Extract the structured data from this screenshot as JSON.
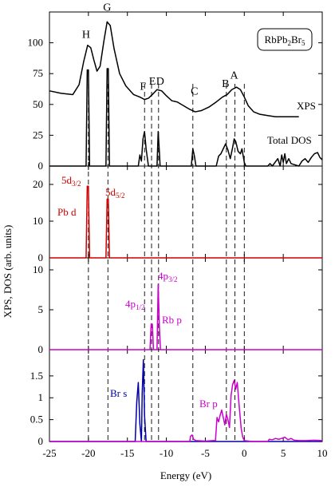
{
  "figure": {
    "xlabel": "Energy (eV)",
    "ylabel": "XPS, DOS (arb. units)",
    "formula": {
      "base": "RbPb",
      "sub1": "2",
      "mid": "Br",
      "sub2": "5"
    },
    "x_ticks": [
      -25,
      -20,
      -15,
      -10,
      -5,
      0,
      5,
      10
    ],
    "xlim": [
      -25,
      10
    ],
    "dashed_lines_x": [
      -20.0,
      -17.5,
      -12.8,
      -11.9,
      -11.0,
      -6.6,
      -2.3,
      -1.2,
      0.0
    ],
    "colors": {
      "axis": "#000000",
      "pb": "#cc0000",
      "rb": "#cc00cc",
      "br_s": "#0000aa",
      "br_p": "#cc00cc"
    }
  },
  "chart_data": [
    {
      "type": "line",
      "panel": "xps_total_dos",
      "ylim": [
        0,
        125
      ],
      "y_ticks": [
        0,
        25,
        50,
        75,
        100
      ],
      "series": [
        {
          "name": "XPS",
          "points": [
            [
              -25,
              61
            ],
            [
              -23.5,
              59
            ],
            [
              -22,
              58
            ],
            [
              -21.2,
              66
            ],
            [
              -20.6,
              85
            ],
            [
              -20.1,
              98
            ],
            [
              -19.7,
              96
            ],
            [
              -19.3,
              86
            ],
            [
              -18.9,
              77
            ],
            [
              -18.5,
              81
            ],
            [
              -18.0,
              102
            ],
            [
              -17.6,
              117
            ],
            [
              -17.2,
              114
            ],
            [
              -16.7,
              95
            ],
            [
              -16.0,
              75
            ],
            [
              -15.2,
              65
            ],
            [
              -14.2,
              58
            ],
            [
              -13.4,
              56
            ],
            [
              -12.8,
              54
            ],
            [
              -12.3,
              55
            ],
            [
              -11.8,
              58
            ],
            [
              -11.2,
              62
            ],
            [
              -10.6,
              61
            ],
            [
              -10.0,
              57
            ],
            [
              -9.3,
              53
            ],
            [
              -8.6,
              52
            ],
            [
              -7.8,
              49
            ],
            [
              -7.0,
              46
            ],
            [
              -6.3,
              44
            ],
            [
              -5.5,
              45
            ],
            [
              -4.5,
              48
            ],
            [
              -3.6,
              52
            ],
            [
              -2.8,
              56
            ],
            [
              -2.2,
              58
            ],
            [
              -1.6,
              62
            ],
            [
              -1.0,
              64
            ],
            [
              -0.5,
              62
            ],
            [
              0.0,
              56
            ],
            [
              0.5,
              49
            ],
            [
              1.2,
              44
            ],
            [
              2.0,
              42
            ],
            [
              3.0,
              41
            ],
            [
              4.0,
              40
            ],
            [
              5.0,
              40
            ],
            [
              7.0,
              40
            ]
          ]
        },
        {
          "name": "Total DOS",
          "points": [
            [
              -25,
              0
            ],
            [
              -20.3,
              0
            ],
            [
              -20.15,
              78
            ],
            [
              -20.0,
              78
            ],
            [
              -19.85,
              0
            ],
            [
              -17.75,
              0
            ],
            [
              -17.6,
              79
            ],
            [
              -17.45,
              79
            ],
            [
              -17.3,
              0
            ],
            [
              -13.6,
              0
            ],
            [
              -13.4,
              9
            ],
            [
              -13.2,
              4
            ],
            [
              -13.0,
              22
            ],
            [
              -12.8,
              28
            ],
            [
              -12.6,
              14
            ],
            [
              -12.3,
              0
            ],
            [
              -11.2,
              0
            ],
            [
              -11.05,
              28
            ],
            [
              -10.9,
              12
            ],
            [
              -10.8,
              0
            ],
            [
              -6.8,
              0
            ],
            [
              -6.6,
              14
            ],
            [
              -6.4,
              8
            ],
            [
              -6.2,
              0
            ],
            [
              -3.6,
              0
            ],
            [
              -3.3,
              8
            ],
            [
              -3.0,
              10
            ],
            [
              -2.7,
              14
            ],
            [
              -2.4,
              18
            ],
            [
              -2.1,
              13
            ],
            [
              -1.8,
              6
            ],
            [
              -1.5,
              15
            ],
            [
              -1.3,
              22
            ],
            [
              -1.1,
              20
            ],
            [
              -0.8,
              12
            ],
            [
              -0.5,
              10
            ],
            [
              -0.3,
              14
            ],
            [
              0.0,
              3
            ],
            [
              0.2,
              0
            ],
            [
              3.0,
              0
            ],
            [
              3.3,
              2
            ],
            [
              3.6,
              0
            ],
            [
              4.3,
              6
            ],
            [
              4.6,
              0
            ],
            [
              4.8,
              9
            ],
            [
              5.0,
              3
            ],
            [
              5.2,
              10
            ],
            [
              5.4,
              2
            ],
            [
              5.7,
              6
            ],
            [
              6.0,
              2
            ],
            [
              6.5,
              1
            ],
            [
              7.0,
              0
            ],
            [
              7.4,
              4
            ],
            [
              7.8,
              6
            ],
            [
              8.2,
              3
            ],
            [
              8.6,
              7
            ],
            [
              9.0,
              10
            ],
            [
              9.4,
              11
            ],
            [
              9.7,
              7
            ],
            [
              10.0,
              5
            ]
          ]
        }
      ],
      "peak_labels": [
        {
          "text": "H",
          "x": -20.3,
          "y": 104
        },
        {
          "text": "G",
          "x": -17.6,
          "y": 126
        },
        {
          "text": "F",
          "x": -13.0,
          "y": 62
        },
        {
          "text": "E",
          "x": -11.8,
          "y": 66
        },
        {
          "text": "D",
          "x": -10.8,
          "y": 66
        },
        {
          "text": "C",
          "x": -6.4,
          "y": 58
        },
        {
          "text": "B",
          "x": -2.4,
          "y": 64
        },
        {
          "text": "A",
          "x": -1.3,
          "y": 71
        }
      ],
      "labels": {
        "xps": "XPS",
        "total_dos": "Total DOS"
      }
    },
    {
      "type": "line",
      "panel": "pb_d",
      "ylim": [
        0,
        25
      ],
      "y_ticks": [
        0,
        10,
        20
      ],
      "series": [
        {
          "name": "Pb d",
          "points": [
            [
              -25,
              0
            ],
            [
              -20.3,
              0
            ],
            [
              -20.15,
              19.5
            ],
            [
              -20.0,
              19.5
            ],
            [
              -19.85,
              0
            ],
            [
              -17.75,
              0
            ],
            [
              -17.6,
              16
            ],
            [
              -17.45,
              16
            ],
            [
              -17.3,
              0
            ],
            [
              10,
              0
            ]
          ]
        }
      ],
      "labels": {
        "series": "Pb d",
        "level1_base": "5d",
        "level1_sub": "3/2",
        "level2_base": "5d",
        "level2_sub": "5/2"
      }
    },
    {
      "type": "line",
      "panel": "rb_p",
      "ylim": [
        0,
        11.5
      ],
      "y_ticks": [
        0,
        5,
        10
      ],
      "series": [
        {
          "name": "Rb p",
          "points": [
            [
              -25,
              0
            ],
            [
              -12.1,
              0
            ],
            [
              -11.95,
              3.2
            ],
            [
              -11.8,
              3.2
            ],
            [
              -11.65,
              0
            ],
            [
              -11.2,
              0
            ],
            [
              -11.05,
              8.2
            ],
            [
              -10.9,
              3
            ],
            [
              -10.75,
              0
            ],
            [
              10,
              0
            ]
          ]
        }
      ],
      "labels": {
        "series": "Rb p",
        "level1_base": "4p",
        "level1_sub": "1/2",
        "level2_base": "4p",
        "level2_sub": "3/2"
      }
    },
    {
      "type": "line",
      "panel": "br_s_p",
      "ylim": [
        0,
        2.1
      ],
      "y_ticks": [
        0,
        0.5,
        1,
        1.5
      ],
      "y_tick_labels": [
        "0",
        "0.5",
        "1",
        "1.5"
      ],
      "series": [
        {
          "name": "Br s",
          "points": [
            [
              -25,
              0
            ],
            [
              -14.0,
              0
            ],
            [
              -13.8,
              0.9
            ],
            [
              -13.6,
              1.35
            ],
            [
              -13.4,
              0.4
            ],
            [
              -13.2,
              0
            ],
            [
              -13.1,
              1.1
            ],
            [
              -12.95,
              1.87
            ],
            [
              -12.8,
              0.6
            ],
            [
              -12.6,
              0
            ],
            [
              10,
              0
            ]
          ]
        },
        {
          "name": "Br p",
          "points": [
            [
              -25,
              0
            ],
            [
              -7.0,
              0
            ],
            [
              -6.9,
              0.12
            ],
            [
              -6.7,
              0.15
            ],
            [
              -6.5,
              0.05
            ],
            [
              -6.2,
              0.02
            ],
            [
              -5.0,
              0.01
            ],
            [
              -4.0,
              0.02
            ],
            [
              -3.7,
              0.02
            ],
            [
              -3.5,
              0.55
            ],
            [
              -3.3,
              0.45
            ],
            [
              -3.1,
              0.6
            ],
            [
              -2.9,
              0.72
            ],
            [
              -2.7,
              0.55
            ],
            [
              -2.5,
              0.38
            ],
            [
              -2.3,
              0.62
            ],
            [
              -2.1,
              0.5
            ],
            [
              -1.9,
              0.32
            ],
            [
              -1.7,
              1.05
            ],
            [
              -1.5,
              1.3
            ],
            [
              -1.3,
              1.4
            ],
            [
              -1.1,
              1.2
            ],
            [
              -0.9,
              1.35
            ],
            [
              -0.7,
              0.9
            ],
            [
              -0.4,
              0.3
            ],
            [
              -0.2,
              0.1
            ],
            [
              0.0,
              0.02
            ],
            [
              1.0,
              0
            ],
            [
              3.0,
              0
            ],
            [
              3.2,
              0.05
            ],
            [
              3.6,
              0.04
            ],
            [
              4.0,
              0.07
            ],
            [
              4.4,
              0.05
            ],
            [
              4.8,
              0.07
            ],
            [
              5.2,
              0.1
            ],
            [
              5.6,
              0.04
            ],
            [
              6.0,
              0.07
            ],
            [
              6.4,
              0.03
            ],
            [
              7.0,
              0.02
            ],
            [
              8.0,
              0.02
            ],
            [
              9.0,
              0.03
            ],
            [
              10,
              0.02
            ]
          ]
        }
      ],
      "labels": {
        "br_s": "Br s",
        "br_p": "Br p"
      }
    }
  ]
}
